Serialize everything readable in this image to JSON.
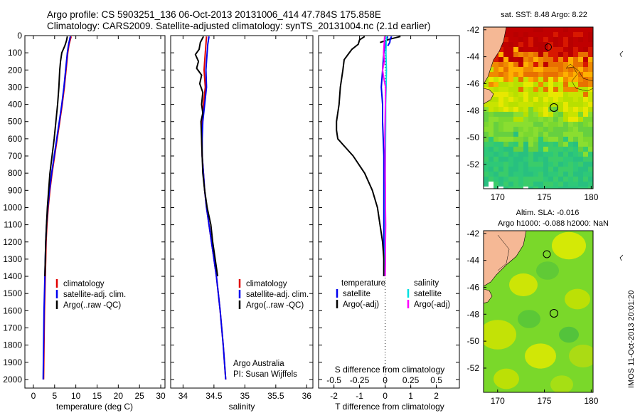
{
  "title_line1": "Argo profile: CS 5903251_136 06-Oct-2013 20131006_414 47.784S 175.858E",
  "title_line2": "Climatology: CARS2009. Satellite-adjusted climatology: synTS_20131004.nc (2.1d earlier)",
  "colors": {
    "climatology": "#e00000",
    "satellite": "#0000ee",
    "argo": "#000000",
    "sat_salinity": "#00e0e0",
    "argo_salinity_adj": "#ff00ff",
    "land": "#f5b895"
  },
  "chart_data": [
    {
      "type": "line",
      "id": "temperature",
      "xlabel": "temperature (deg C)",
      "ylabel": "",
      "xlim": [
        -2,
        31
      ],
      "ylim": [
        2050,
        0
      ],
      "x_ticks": [
        "0",
        "5",
        "10",
        "15",
        "20",
        "25",
        "30"
      ],
      "x_tick_values": [
        0,
        5,
        10,
        15,
        20,
        25,
        30
      ],
      "y_ticks": [
        "0",
        "100",
        "200",
        "300",
        "400",
        "500",
        "600",
        "700",
        "800",
        "900",
        "1000",
        "1100",
        "1200",
        "1300",
        "1400",
        "1500",
        "1600",
        "1700",
        "1800",
        "1900",
        "2000"
      ],
      "y_tick_values": [
        0,
        100,
        200,
        300,
        400,
        500,
        600,
        700,
        800,
        900,
        1000,
        1100,
        1200,
        1300,
        1400,
        1500,
        1600,
        1700,
        1800,
        1900,
        2000
      ],
      "legend": [
        "climatology",
        "satellite-adj. clim.",
        "Argo(..raw -QC)"
      ],
      "series": [
        {
          "name": "climatology",
          "color_key": "climatology",
          "depth": [
            5,
            50,
            100,
            200,
            300,
            400,
            500,
            600,
            700,
            800,
            900,
            1000,
            1100,
            1200,
            1300,
            1400,
            1500,
            1600,
            1800,
            2000
          ],
          "values": [
            8.9,
            8.4,
            8.1,
            7.7,
            7.3,
            6.8,
            6.2,
            5.6,
            5.0,
            4.4,
            3.9,
            3.5,
            3.2,
            3.0,
            2.9,
            2.8,
            2.7,
            2.6,
            2.5,
            2.4
          ]
        },
        {
          "name": "satellite-adj. clim.",
          "color_key": "satellite",
          "depth": [
            5,
            50,
            100,
            200,
            300,
            400,
            500,
            600,
            700,
            800,
            900,
            1000,
            1100,
            1200,
            1300,
            1400,
            1500,
            1600,
            1800,
            2000
          ],
          "values": [
            8.7,
            8.3,
            8.0,
            7.6,
            7.2,
            6.7,
            6.1,
            5.5,
            4.9,
            4.3,
            3.8,
            3.4,
            3.1,
            2.9,
            2.8,
            2.7,
            2.6,
            2.5,
            2.4,
            2.3
          ]
        },
        {
          "name": "Argo(..raw -QC)",
          "color_key": "argo",
          "depth": [
            5,
            30,
            60,
            100,
            150,
            200,
            300,
            400,
            500,
            600,
            700,
            800,
            900,
            1000,
            1100,
            1200,
            1300,
            1400
          ],
          "values": [
            8.0,
            7.8,
            7.4,
            6.7,
            6.4,
            6.2,
            6.0,
            5.7,
            5.3,
            4.9,
            4.4,
            3.9,
            3.6,
            3.3,
            3.1,
            2.9,
            2.8,
            2.7
          ]
        }
      ]
    },
    {
      "type": "line",
      "id": "salinity",
      "xlabel": "salinity",
      "ylabel": "",
      "xlim": [
        33.8,
        36.1
      ],
      "ylim": [
        2050,
        0
      ],
      "x_ticks": [
        "34",
        "34.5",
        "35",
        "35.5",
        "36"
      ],
      "x_tick_values": [
        34,
        34.5,
        35,
        35.5,
        36
      ],
      "legend": [
        "climatology",
        "satellite-adj. clim.",
        "Argo(..raw -QC)"
      ],
      "annotation": [
        "Argo Australia",
        "PI: Susan Wijffels"
      ],
      "series": [
        {
          "name": "climatology",
          "color_key": "climatology",
          "depth": [
            5,
            50,
            100,
            150,
            200,
            300,
            400,
            500,
            600,
            700,
            800,
            900,
            1000,
            1100,
            1200,
            1300,
            1400,
            1500,
            1600,
            1800,
            2000
          ],
          "values": [
            34.38,
            34.37,
            34.36,
            34.35,
            34.34,
            34.36,
            34.33,
            34.31,
            34.3,
            34.31,
            34.33,
            34.35,
            34.38,
            34.42,
            34.46,
            34.5,
            34.54,
            34.57,
            34.6,
            34.65,
            34.69
          ]
        },
        {
          "name": "satellite-adj. clim.",
          "color_key": "satellite",
          "depth": [
            5,
            50,
            100,
            150,
            200,
            300,
            400,
            500,
            600,
            700,
            800,
            900,
            1000,
            1100,
            1200,
            1300,
            1400,
            1500,
            1600,
            1800,
            2000
          ],
          "values": [
            34.42,
            34.4,
            34.39,
            34.38,
            34.37,
            34.38,
            34.35,
            34.32,
            34.31,
            34.31,
            34.33,
            34.35,
            34.38,
            34.42,
            34.46,
            34.5,
            34.54,
            34.57,
            34.6,
            34.65,
            34.69
          ]
        },
        {
          "name": "Argo(..raw -QC)",
          "color_key": "argo",
          "depth": [
            5,
            40,
            80,
            110,
            150,
            190,
            230,
            280,
            330,
            400,
            450,
            500,
            600,
            700,
            800,
            900,
            1000,
            1100,
            1200,
            1300,
            1400
          ],
          "values": [
            34.33,
            34.28,
            34.26,
            34.2,
            34.25,
            34.22,
            34.3,
            34.27,
            34.32,
            34.3,
            34.32,
            34.29,
            34.3,
            34.31,
            34.32,
            34.35,
            34.39,
            34.45,
            34.48,
            34.52,
            34.56
          ]
        }
      ]
    },
    {
      "type": "line",
      "id": "differences",
      "xlabel": "T difference from climatology",
      "x2label": "S difference from climatology",
      "xlim": [
        -2.6,
        2.9
      ],
      "ylim": [
        2050,
        0
      ],
      "x_ticks": [
        "-2",
        "-1",
        "0",
        "1",
        "2"
      ],
      "x_tick_values": [
        -2,
        -1,
        0,
        1,
        2
      ],
      "x2_ticks": [
        "-0.5",
        "-0.25",
        "0",
        "0.25",
        "0.5"
      ],
      "x2_tick_values": [
        -0.5,
        -0.25,
        0,
        0.25,
        0.5
      ],
      "legend_temperature": {
        "heading": "temperature",
        "items": [
          "satellite",
          "Argo(-adj)"
        ]
      },
      "legend_salinity": {
        "heading": "salinity",
        "items": [
          "satellite",
          "Argo(-adj)"
        ]
      },
      "series": [
        {
          "name": "temperature satellite",
          "color_key": "satellite",
          "depth": [
            5,
            50,
            100,
            200,
            300,
            400,
            500,
            700,
            900,
            1100,
            1300,
            1400
          ],
          "values": [
            0.1,
            0.0,
            -0.05,
            -0.1,
            -0.15,
            -0.1,
            -0.1,
            -0.05,
            -0.05,
            -0.05,
            -0.05,
            -0.05
          ]
        },
        {
          "name": "temperature Argo(-adj)",
          "color_key": "argo",
          "depth": [
            5,
            25,
            50,
            80,
            100,
            140,
            200,
            250,
            300,
            400,
            500,
            550,
            600,
            650,
            700,
            800,
            900,
            1000,
            1100,
            1200,
            1300,
            1400
          ],
          "values": [
            -0.8,
            -1.0,
            -1.05,
            -1.3,
            -1.4,
            -1.6,
            -1.65,
            -1.7,
            -1.75,
            -1.8,
            -1.9,
            -1.9,
            -1.85,
            -1.55,
            -1.25,
            -0.8,
            -0.5,
            -0.3,
            -0.2,
            -0.1,
            -0.05,
            -0.05
          ]
        },
        {
          "name": "temperature Argo vs satellite top",
          "color_key": "argo",
          "depth": [
            5,
            20,
            40
          ],
          "values": [
            0.6,
            0.2,
            -0.2
          ]
        },
        {
          "name": "salinity satellite",
          "color_key": "sat_salinity",
          "depth": [
            5,
            50,
            100,
            200,
            300,
            400,
            500,
            700,
            900,
            1100,
            1300,
            1400
          ],
          "values": [
            0.05,
            0.04,
            0.03,
            0.05,
            0.04,
            0.02,
            0.02,
            0.01,
            0.0,
            0.0,
            0.0,
            0.0
          ]
        },
        {
          "name": "salinity Argo(-adj)",
          "color_key": "argo_salinity_adj",
          "depth": [
            5,
            50,
            100,
            150,
            200,
            250,
            300,
            400,
            500,
            600,
            700,
            800,
            900,
            1000,
            1100,
            1200,
            1300,
            1400
          ],
          "values": [
            -0.02,
            -0.04,
            -0.06,
            -0.03,
            -0.1,
            -0.05,
            0.02,
            0.01,
            0.0,
            -0.01,
            0.0,
            0.0,
            0.01,
            0.01,
            0.02,
            0.01,
            0.01,
            0.0
          ]
        },
        {
          "name": "salinity Argo top",
          "color_key": "satellite",
          "depth": [
            5,
            20,
            40,
            60
          ],
          "values": [
            0.25,
            0.2,
            0.18,
            0.1
          ]
        }
      ]
    },
    {
      "type": "heatmap",
      "id": "sst_map",
      "title": "sat. SST: 8.48  Argo: 8.22",
      "x_ticks": [
        "170",
        "175",
        "180"
      ],
      "x_tick_values": [
        170,
        175,
        180
      ],
      "xlim": [
        168.5,
        180.2
      ],
      "ylim": [
        -53.8,
        -41.8
      ],
      "y_ticks": [
        "-42",
        "-44",
        "-46",
        "-48",
        "-50",
        "-52"
      ],
      "y_tick_values": [
        -42,
        -44,
        -46,
        -48,
        -50,
        -52
      ],
      "profile_marker": {
        "lon": 175.858,
        "lat": -47.784
      }
    },
    {
      "type": "heatmap",
      "id": "sla_map",
      "title_line1": "Altim. SLA: -0.016",
      "title_line2": "Argo h1000: -0.088 h2000: NaN",
      "x_ticks": [
        "170",
        "175",
        "180"
      ],
      "x_tick_values": [
        170,
        175,
        180
      ],
      "xlim": [
        168.5,
        180.2
      ],
      "ylim": [
        -53.8,
        -41.8
      ],
      "y_ticks": [
        "-42",
        "-44",
        "-46",
        "-48",
        "-50",
        "-52"
      ],
      "y_tick_values": [
        -42,
        -44,
        -46,
        -48,
        -50,
        -52
      ],
      "profile_marker": {
        "lon": 175.858,
        "lat": -47.784
      }
    }
  ],
  "footer_vertical": "IMOS 11-Oct-2013 20:01:20"
}
